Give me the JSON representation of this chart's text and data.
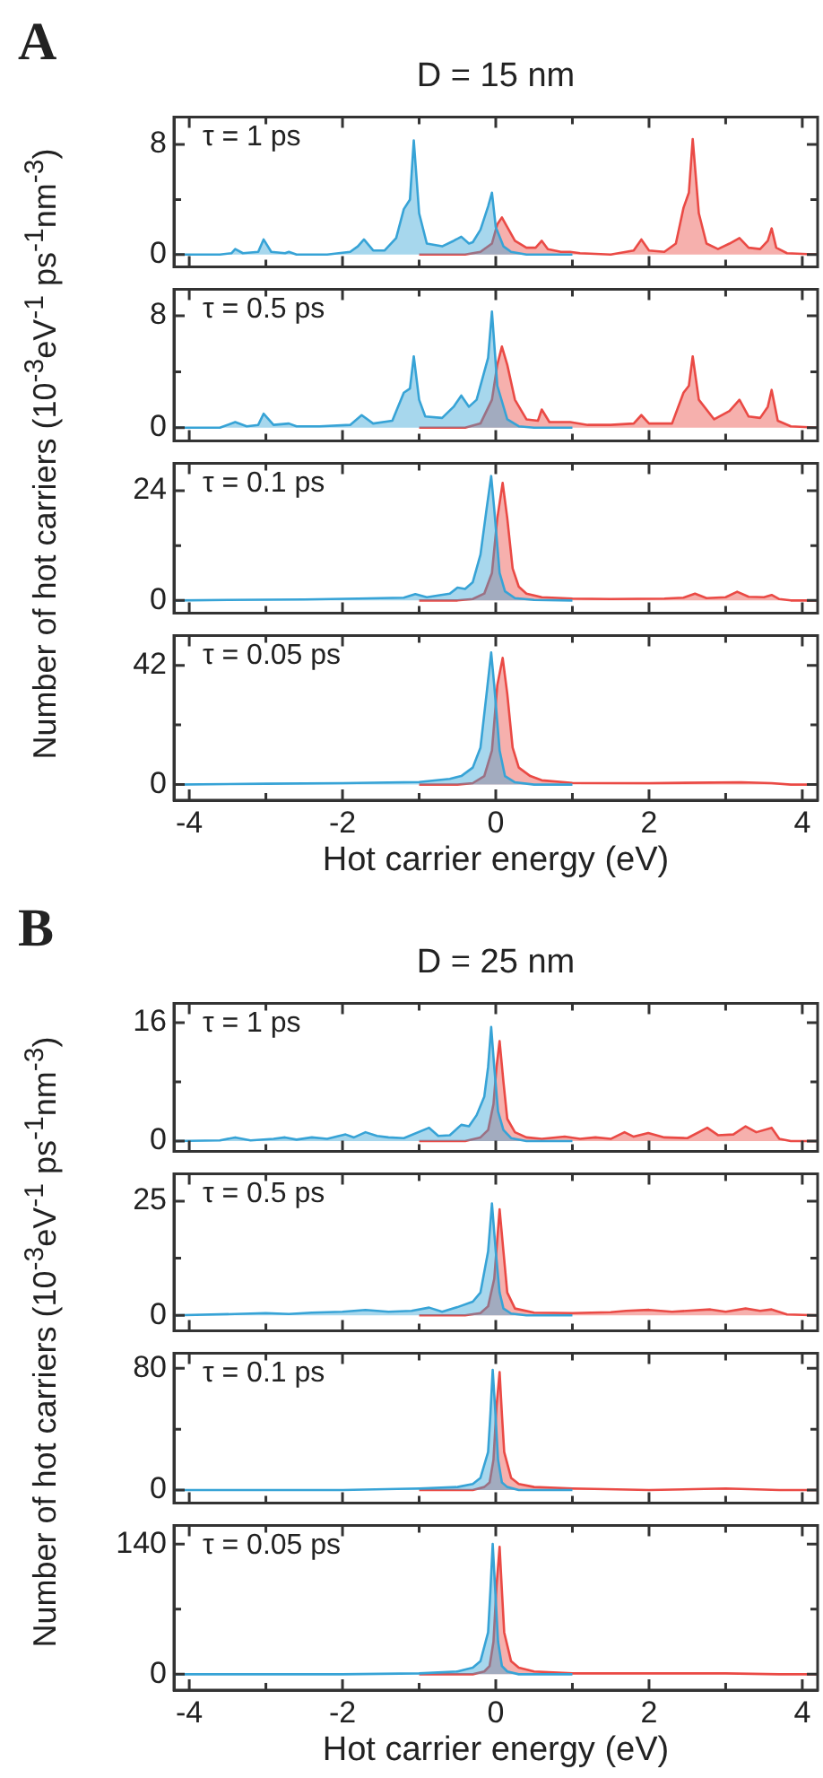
{
  "chart_data": [
    {
      "type": "area",
      "title": "D = 15 nm",
      "ylabel": "Number of hot carriers (10$^{-3}$eV$^{-1}$ ps$^{-1}$nm$^{-3}$)",
      "annotations": [
        "A",
        "τ = 1 ps"
      ],
      "xlim": [
        -4.2,
        4.2
      ],
      "xticks": [
        -4,
        {
          "value": -3,
          "label": null
        },
        -2,
        {
          "value": -1,
          "label": null
        },
        0,
        {
          "value": 1,
          "label": null
        },
        2,
        {
          "value": 3,
          "label": null
        },
        4
      ],
      "ylim": [
        -0.9,
        10
      ],
      "yticks": [
        0,
        {
          "value": 4,
          "label": null
        },
        8
      ],
      "tick_labels": "y",
      "series": [
        {
          "color": "#37a3d6",
          "x": [
            -4.2,
            -3.6,
            -3.45,
            -3.4,
            -3.3,
            -3.1,
            -3.03,
            -2.93,
            -2.75,
            -2.7,
            -2.6,
            -2.2,
            -1.9,
            -1.8,
            -1.72,
            -1.6,
            -1.45,
            -1.3,
            -1.2,
            -1.12,
            -1.07,
            -1.0,
            -0.9,
            -0.7,
            -0.55,
            -0.45,
            -0.35,
            -0.3,
            -0.2,
            -0.1,
            -0.05,
            0.0,
            0.1,
            0.2,
            0.4,
            1
          ],
          "values": [
            0,
            0,
            0.1,
            0.4,
            0.1,
            0.2,
            1.1,
            0.2,
            0.1,
            0.2,
            0,
            0,
            0.2,
            0.6,
            1.1,
            0.3,
            0.3,
            1.2,
            3.3,
            4,
            8.3,
            3,
            0.8,
            0.6,
            1,
            1.3,
            0.8,
            0.9,
            1.8,
            3.5,
            4.5,
            2,
            0.6,
            0.2,
            0,
            0
          ]
        },
        {
          "color": "#ea4a45",
          "x": [
            -1,
            -0.4,
            -0.2,
            -0.05,
            0.02,
            0.08,
            0.15,
            0.25,
            0.4,
            0.52,
            0.6,
            0.68,
            0.85,
            0.97,
            1.1,
            1.5,
            1.8,
            1.9,
            2.0,
            2.2,
            2.35,
            2.45,
            2.52,
            2.57,
            2.65,
            2.75,
            2.9,
            3.05,
            3.18,
            3.3,
            3.45,
            3.55,
            3.6,
            3.66,
            3.8,
            4.2
          ],
          "values": [
            0,
            0,
            0.2,
            0.8,
            2.2,
            2.7,
            2,
            1,
            0.5,
            0.5,
            1.0,
            0.4,
            0.2,
            0.2,
            0.1,
            0,
            0.3,
            1.1,
            0.3,
            0.2,
            0.8,
            3.4,
            4.5,
            8.4,
            3,
            0.8,
            0.4,
            0.8,
            1.2,
            0.5,
            0.4,
            1.0,
            1.9,
            0.5,
            0.1,
            0
          ]
        }
      ]
    },
    {
      "type": "area",
      "annotations": [
        "τ = 0.5 ps"
      ],
      "xlim": [
        -4.2,
        4.2
      ],
      "xticks": [
        -4,
        {
          "value": -3,
          "label": null
        },
        -2,
        {
          "value": -1,
          "label": null
        },
        0,
        {
          "value": 1,
          "label": null
        },
        2,
        {
          "value": 3,
          "label": null
        },
        4
      ],
      "ylim": [
        -0.95,
        9.9
      ],
      "yticks": [
        0,
        {
          "value": 4,
          "label": null
        },
        8
      ],
      "tick_labels": "y",
      "series": [
        {
          "color": "#37a3d6",
          "x": [
            -4.2,
            -3.6,
            -3.4,
            -3.25,
            -3.1,
            -3.03,
            -2.9,
            -2.7,
            -2.6,
            -2.3,
            -1.9,
            -1.75,
            -1.6,
            -1.35,
            -1.2,
            -1.12,
            -1.07,
            -1.0,
            -0.92,
            -0.7,
            -0.55,
            -0.45,
            -0.35,
            -0.25,
            -0.1,
            -0.05,
            0.02,
            0.15,
            0.3,
            0.5,
            1
          ],
          "values": [
            0,
            0,
            0.4,
            0.1,
            0.2,
            1.0,
            0.2,
            0.3,
            0.1,
            0.1,
            0.2,
            0.9,
            0.3,
            0.5,
            2.5,
            2.8,
            5.1,
            2,
            0.8,
            0.7,
            1.5,
            2.3,
            1.5,
            2,
            5,
            8.3,
            3,
            0.6,
            0.1,
            0,
            0
          ]
        },
        {
          "color": "#ea4a45",
          "x": [
            -1,
            -0.4,
            -0.2,
            -0.05,
            0.02,
            0.08,
            0.15,
            0.25,
            0.4,
            0.55,
            0.6,
            0.7,
            0.97,
            1.2,
            1.5,
            1.8,
            1.9,
            2.0,
            2.3,
            2.45,
            2.52,
            2.57,
            2.65,
            2.85,
            3.05,
            3.18,
            3.3,
            3.45,
            3.55,
            3.6,
            3.68,
            3.85,
            4.2
          ],
          "values": [
            0,
            0,
            0.3,
            2,
            4.5,
            5.8,
            4.5,
            2,
            0.6,
            0.5,
            1.3,
            0.4,
            0.4,
            0.2,
            0.2,
            0.3,
            0.9,
            0.3,
            0.3,
            2.5,
            3,
            5.1,
            2,
            0.6,
            1.2,
            2.0,
            0.8,
            0.7,
            1.5,
            2.7,
            0.5,
            0.1,
            0
          ]
        }
      ]
    },
    {
      "type": "area",
      "annotations": [
        "τ = 0.1 ps"
      ],
      "xlim": [
        -4.2,
        4.2
      ],
      "xticks": [
        -4,
        {
          "value": -3,
          "label": null
        },
        -2,
        {
          "value": -1,
          "label": null
        },
        0,
        {
          "value": 1,
          "label": null
        },
        2,
        {
          "value": 3,
          "label": null
        },
        4
      ],
      "ylim": [
        -2.8,
        30
      ],
      "yticks": [
        0,
        {
          "value": 12,
          "label": null
        },
        24
      ],
      "tick_labels": "y",
      "series": [
        {
          "color": "#37a3d6",
          "x": [
            -4.2,
            -3.5,
            -2.5,
            -1.8,
            -1.2,
            -1.05,
            -0.9,
            -0.6,
            -0.5,
            -0.4,
            -0.3,
            -0.2,
            -0.12,
            -0.06,
            -0.02,
            0.05,
            0.12,
            0.25,
            0.5,
            1
          ],
          "values": [
            0,
            0.1,
            0.2,
            0.4,
            0.6,
            1.4,
            0.7,
            1.5,
            2.8,
            2.5,
            4,
            10,
            20,
            27.2,
            20,
            6,
            2,
            0.5,
            0.1,
            0
          ]
        },
        {
          "color": "#ea4a45",
          "x": [
            -1,
            -0.5,
            -0.3,
            -0.15,
            -0.05,
            0.02,
            0.09,
            0.15,
            0.22,
            0.3,
            0.4,
            0.6,
            1,
            1.5,
            2.2,
            2.45,
            2.6,
            2.75,
            3.0,
            3.15,
            3.3,
            3.5,
            3.6,
            3.7,
            3.85,
            4.2
          ],
          "values": [
            0,
            0,
            0.3,
            1.5,
            6,
            18,
            25.7,
            18,
            7,
            3,
            1.5,
            0.7,
            0.4,
            0.3,
            0.4,
            0.6,
            1.5,
            0.5,
            0.7,
            1.9,
            0.8,
            0.7,
            1.2,
            0.3,
            0,
            0
          ]
        }
      ]
    },
    {
      "type": "area",
      "annotations": [
        "τ = 0.05 ps"
      ],
      "xlabel": "Hot carrier energy (eV)",
      "xlim": [
        -4.2,
        4.2
      ],
      "xticks": [
        -4,
        {
          "value": -3,
          "label": null
        },
        -2,
        {
          "value": -1,
          "label": null
        },
        0,
        {
          "value": 1,
          "label": null
        },
        2,
        {
          "value": 3,
          "label": null
        },
        4
      ],
      "ylim": [
        -5.5,
        52.5
      ],
      "yticks": [
        0,
        {
          "value": 21,
          "label": null
        },
        42
      ],
      "series": [
        {
          "color": "#37a3d6",
          "x": [
            -4.2,
            -3,
            -2,
            -1,
            -0.6,
            -0.45,
            -0.3,
            -0.2,
            -0.12,
            -0.06,
            -0.02,
            0.05,
            0.12,
            0.25,
            0.5,
            1
          ],
          "values": [
            0,
            0.3,
            0.5,
            0.9,
            2,
            3,
            6,
            13,
            32,
            46.5,
            35,
            12,
            3,
            0.8,
            0,
            0
          ]
        },
        {
          "color": "#ea4a45",
          "x": [
            -1,
            -0.5,
            -0.3,
            -0.15,
            -0.05,
            0.02,
            0.09,
            0.15,
            0.22,
            0.3,
            0.45,
            0.6,
            1,
            2,
            3.2,
            3.6,
            3.85,
            4.2
          ],
          "values": [
            0,
            0,
            0.5,
            3,
            12,
            35,
            44.6,
            32,
            13,
            6,
            3,
            1.5,
            0.6,
            0.5,
            0.8,
            0.5,
            0,
            0
          ]
        }
      ]
    },
    {
      "type": "area",
      "title": "D = 25 nm",
      "ylabel": "Number of hot carriers (10$^{-3}$eV$^{-1}$ ps$^{-1}$nm$^{-3}$)",
      "annotations": [
        "B",
        "τ = 1 ps"
      ],
      "xlim": [
        -4.2,
        4.2
      ],
      "xticks": [
        -4,
        {
          "value": -3,
          "label": null
        },
        -2,
        {
          "value": -1,
          "label": null
        },
        0,
        {
          "value": 1,
          "label": null
        },
        2,
        {
          "value": 3,
          "label": null
        },
        4
      ],
      "ylim": [
        -1.4,
        18.6
      ],
      "yticks": [
        0,
        {
          "value": 8,
          "label": null
        },
        16
      ],
      "tick_labels": "y",
      "series": [
        {
          "color": "#37a3d6",
          "x": [
            -4.2,
            -3.6,
            -3.4,
            -3.2,
            -2.9,
            -2.75,
            -2.6,
            -2.4,
            -2.2,
            -1.96,
            -1.85,
            -1.7,
            -1.55,
            -1.4,
            -1.2,
            -0.87,
            -0.75,
            -0.6,
            -0.45,
            -0.35,
            -0.25,
            -0.15,
            -0.1,
            -0.06,
            -0.02,
            0.03,
            0.1,
            0.2,
            0.4,
            1
          ],
          "values": [
            0,
            0.1,
            0.5,
            0.1,
            0.3,
            0.5,
            0.2,
            0.5,
            0.3,
            0.9,
            0.5,
            1.2,
            0.7,
            0.5,
            0.4,
            1.8,
            0.7,
            0.8,
            2.2,
            2.0,
            3.5,
            6,
            10,
            15.4,
            10,
            4,
            1.5,
            0.4,
            0,
            0
          ]
        },
        {
          "color": "#ea4a45",
          "x": [
            -1,
            -0.4,
            -0.2,
            -0.1,
            -0.03,
            0.01,
            0.05,
            0.1,
            0.15,
            0.25,
            0.4,
            0.6,
            0.9,
            1.1,
            1.3,
            1.5,
            1.68,
            1.8,
            1.99,
            2.2,
            2.5,
            2.76,
            2.9,
            3.1,
            3.26,
            3.4,
            3.6,
            3.7,
            3.85,
            4.2
          ],
          "values": [
            0,
            0,
            0.5,
            1.5,
            5,
            10,
            13.5,
            8,
            3,
            1.2,
            0.5,
            0.3,
            0.6,
            0.3,
            0.5,
            0.3,
            1.2,
            0.6,
            1.1,
            0.5,
            0.4,
            1.8,
            0.8,
            0.9,
            2.0,
            1.2,
            1.8,
            0.3,
            0,
            0
          ]
        }
      ]
    },
    {
      "type": "area",
      "annotations": [
        "τ = 0.5 ps"
      ],
      "xlim": [
        -4.2,
        4.2
      ],
      "xticks": [
        -4,
        {
          "value": -3,
          "label": null
        },
        -2,
        {
          "value": -1,
          "label": null
        },
        0,
        {
          "value": 1,
          "label": null
        },
        2,
        {
          "value": 3,
          "label": null
        },
        4
      ],
      "ylim": [
        -3.4,
        31
      ],
      "yticks": [
        0,
        {
          "value": 12.5,
          "label": null
        },
        25
      ],
      "tick_labels": "y",
      "series": [
        {
          "color": "#37a3d6",
          "x": [
            -4.2,
            -3.4,
            -3.0,
            -2.7,
            -2.4,
            -2.0,
            -1.7,
            -1.4,
            -1.1,
            -0.87,
            -0.7,
            -0.5,
            -0.3,
            -0.2,
            -0.1,
            -0.05,
            0,
            0.05,
            0.1,
            0.2,
            0.4,
            1
          ],
          "values": [
            0,
            0.3,
            0.5,
            0.3,
            0.6,
            0.8,
            1.2,
            0.8,
            1.0,
            1.7,
            0.8,
            1.8,
            3,
            5,
            14,
            24.5,
            14,
            5,
            1.5,
            0.4,
            0,
            0
          ]
        },
        {
          "color": "#ea4a45",
          "x": [
            -1,
            -0.4,
            -0.2,
            -0.1,
            -0.02,
            0.05,
            0.1,
            0.15,
            0.25,
            0.5,
            1.0,
            1.5,
            1.7,
            2.0,
            2.3,
            2.8,
            3.0,
            3.26,
            3.45,
            3.6,
            3.8,
            4.2
          ],
          "values": [
            0,
            0,
            0.5,
            2,
            8,
            23.2,
            14,
            5,
            1.5,
            0.6,
            0.5,
            0.7,
            1.0,
            1.2,
            0.8,
            1.3,
            0.8,
            1.5,
            1.0,
            1.3,
            0.2,
            0
          ]
        }
      ]
    },
    {
      "type": "area",
      "annotations": [
        "τ = 0.1 ps"
      ],
      "xlim": [
        -4.2,
        4.2
      ],
      "xticks": [
        -4,
        {
          "value": -3,
          "label": null
        },
        -2,
        {
          "value": -1,
          "label": null
        },
        0,
        {
          "value": 1,
          "label": null
        },
        2,
        {
          "value": 3,
          "label": null
        },
        4
      ],
      "ylim": [
        -8.6,
        90
      ],
      "yticks": [
        0,
        {
          "value": 40,
          "label": null
        },
        80
      ],
      "tick_labels": "y",
      "series": [
        {
          "color": "#37a3d6",
          "x": [
            -4.2,
            -2,
            -1,
            -0.5,
            -0.3,
            -0.2,
            -0.1,
            -0.07,
            -0.04,
            -0.01,
            0.03,
            0.08,
            0.15,
            0.3,
            1
          ],
          "values": [
            0,
            0,
            1,
            2,
            4,
            8,
            25,
            50,
            79,
            55,
            20,
            5,
            2,
            0,
            0
          ]
        },
        {
          "color": "#ea4a45",
          "x": [
            -1,
            -0.3,
            -0.15,
            -0.08,
            -0.03,
            0.01,
            0.05,
            0.08,
            0.11,
            0.2,
            0.3,
            0.5,
            1,
            2,
            3,
            3.7,
            4.2
          ],
          "values": [
            0,
            0,
            2,
            5,
            20,
            55,
            77.5,
            50,
            25,
            8,
            4,
            2,
            1,
            0,
            1,
            0,
            0
          ]
        }
      ]
    },
    {
      "type": "area",
      "annotations": [
        "τ = 0.05 ps"
      ],
      "xlabel": "Hot carrier energy (eV)",
      "xlim": [
        -4.2,
        4.2
      ],
      "xticks": [
        -4,
        {
          "value": -3,
          "label": null
        },
        -2,
        {
          "value": -1,
          "label": null
        },
        0,
        {
          "value": 1,
          "label": null
        },
        2,
        {
          "value": 3,
          "label": null
        },
        4
      ],
      "ylim": [
        -17,
        160
      ],
      "yticks": [
        0,
        {
          "value": 70,
          "label": null
        },
        140
      ],
      "series": [
        {
          "color": "#37a3d6",
          "x": [
            -4.2,
            -2,
            -1,
            -0.5,
            -0.3,
            -0.2,
            -0.1,
            -0.07,
            -0.04,
            -0.01,
            0.03,
            0.08,
            0.15,
            0.3,
            1
          ],
          "values": [
            0,
            0,
            1,
            3,
            7,
            14,
            45,
            90,
            140,
            95,
            35,
            9,
            3,
            0,
            0
          ]
        },
        {
          "color": "#ea4a45",
          "x": [
            -1,
            -0.3,
            -0.15,
            -0.08,
            -0.03,
            0.01,
            0.05,
            0.08,
            0.11,
            0.2,
            0.3,
            0.5,
            1,
            2,
            3,
            3.7,
            4.2
          ],
          "values": [
            0,
            0,
            3,
            9,
            35,
            95,
            137,
            90,
            45,
            14,
            7,
            3,
            1,
            1,
            1,
            0,
            0
          ]
        }
      ]
    }
  ]
}
